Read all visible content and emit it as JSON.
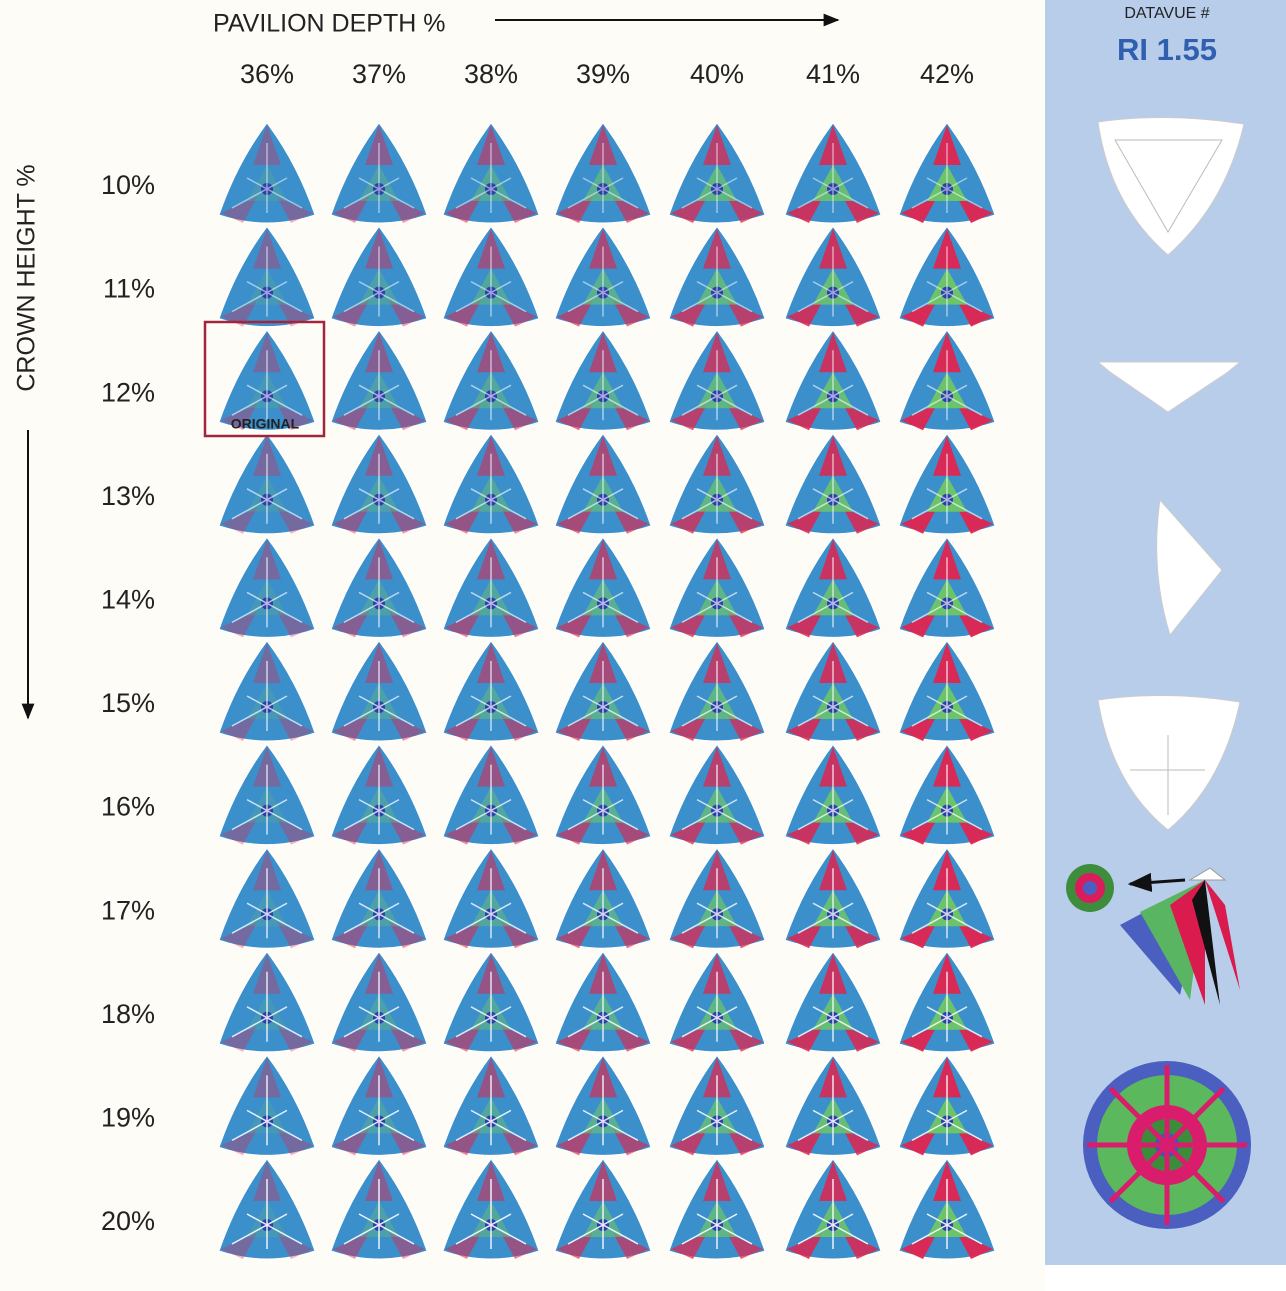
{
  "header": {
    "x_axis_title": "PAVILION DEPTH %",
    "y_axis_title": "CROWN HEIGHT %"
  },
  "columns": [
    "36%",
    "37%",
    "38%",
    "39%",
    "40%",
    "41%",
    "42%"
  ],
  "rows": [
    "10%",
    "11%",
    "12%",
    "13%",
    "14%",
    "15%",
    "16%",
    "17%",
    "18%",
    "19%",
    "20%"
  ],
  "original_label": "ORIGINAL",
  "sidebar": {
    "label": "DATAVUE #",
    "title": "RI 1.55"
  }
}
